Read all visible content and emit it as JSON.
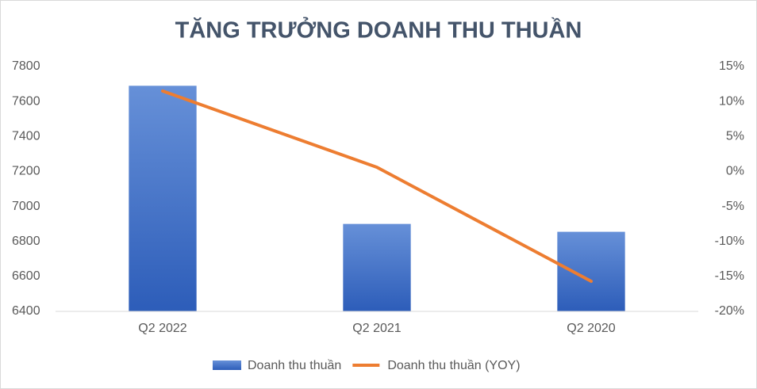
{
  "chart_data": {
    "type": "bar",
    "title": "TĂNG TRƯỞNG DOANH THU THUẦN",
    "categories": [
      "Q2 2022",
      "Q2 2021",
      "Q2 2020"
    ],
    "series": [
      {
        "name": "Doanh thu thuần",
        "type": "bar",
        "color": "#4472c4",
        "values": [
          7690,
          6900,
          6855
        ]
      },
      {
        "name": "Doanh thu thuần (YOY)",
        "type": "line",
        "axis": "y2",
        "color": "#ed7d31",
        "values": [
          11.5,
          0.6,
          -15.7
        ]
      }
    ],
    "ylim": [
      6400,
      7800
    ],
    "yticks": [
      6400,
      6600,
      6800,
      7000,
      7200,
      7400,
      7600,
      7800
    ],
    "y2lim": [
      -20,
      15
    ],
    "y2ticks": [
      {
        "value": -20,
        "label": "-20%"
      },
      {
        "value": -15,
        "label": "-15%"
      },
      {
        "value": -10,
        "label": "-10%"
      },
      {
        "value": -5,
        "label": "-5%"
      },
      {
        "value": 0,
        "label": "0%"
      },
      {
        "value": 5,
        "label": "5%"
      },
      {
        "value": 10,
        "label": "10%"
      },
      {
        "value": 15,
        "label": "15%"
      }
    ],
    "grid": false,
    "legend": "bottom"
  }
}
